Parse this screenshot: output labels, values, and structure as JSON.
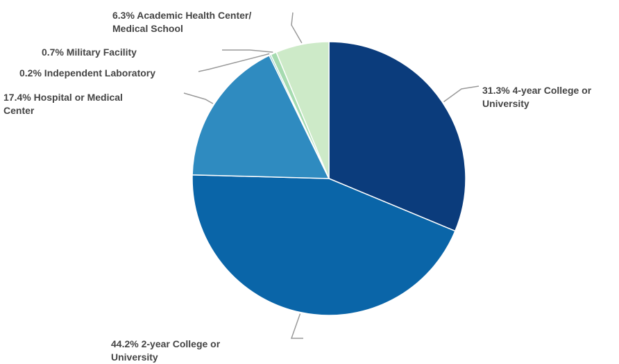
{
  "chart_data": {
    "type": "pie",
    "title": "",
    "start_angle_deg": 0,
    "direction": "clockwise",
    "slices": [
      {
        "label": "31.3% 4-year College or\nUniversity",
        "category": "4-year College or University",
        "value": 31.3,
        "color": "#0b3c7c"
      },
      {
        "label": "44.2% 2-year College or\nUniversity",
        "category": "2-year College or University",
        "value": 44.2,
        "color": "#0a65a8"
      },
      {
        "label": "17.4% Hospital or Medical\nCenter",
        "category": "Hospital or Medical Center",
        "value": 17.4,
        "color": "#2f8bc0"
      },
      {
        "label": "0.2% Independent Laboratory",
        "category": "Independent Laboratory",
        "value": 0.2,
        "color": "#7fc4b8"
      },
      {
        "label": "0.7% Military Facility",
        "category": "Military Facility",
        "value": 0.7,
        "color": "#a6dbb0"
      },
      {
        "label": "6.3% Academic Health Center/\nMedical School",
        "category": "Academic Health Center/Medical School",
        "value": 6.3,
        "color": "#cdeac8"
      }
    ],
    "leader_line_color": "#999999",
    "label_color": "#444444"
  }
}
